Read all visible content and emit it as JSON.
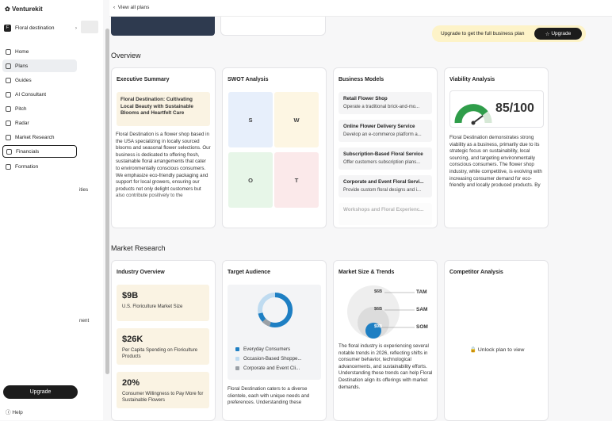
{
  "sidebar": {
    "brand": "Venturekit",
    "workspace": "Floral destination",
    "nav": [
      "Home",
      "Plans",
      "Guides",
      "AI Consultant",
      "Pitch",
      "Radar",
      "Market Research",
      "Financials",
      "Formation"
    ],
    "partial": [
      "ities",
      "nent"
    ],
    "upgrade": "Upgrade",
    "help": "Help"
  },
  "topbar": {
    "back": "View all plans",
    "banner": "Upgrade to get the full business plan",
    "banner_button": "Upgrade"
  },
  "overview": {
    "heading": "Overview",
    "executive_summary": {
      "title": "Executive Summary",
      "highlight": "Floral Destination: Cultivating Local Beauty with Sustainable Blooms and Heartfelt Care",
      "body": "Floral Destination is a flower shop based in the USA specializing in locally sourced blooms and seasonal flower selections. Our business is dedicated to offering fresh, sustainable floral arrangements that cater to environmentally conscious consumers. We emphasize eco-friendly packaging and support for local growers, ensuring our products not only delight customers but also contribute positively to the"
    },
    "swot": {
      "title": "SWOT Analysis",
      "cells": [
        "S",
        "W",
        "O",
        "T"
      ]
    },
    "business_models": {
      "title": "Business Models",
      "items": [
        {
          "name": "Retail Flower Shop",
          "desc": "Operate a traditional brick-and-mo..."
        },
        {
          "name": "Online Flower Delivery Service",
          "desc": "Develop an e-commerce platform a..."
        },
        {
          "name": "Subscription-Based Floral Service",
          "desc": "Offer customers subscription plans..."
        },
        {
          "name": "Corporate and Event Floral Servi...",
          "desc": "Provide custom floral designs and i..."
        },
        {
          "name": "Workshops and Floral Experienc...",
          "desc": ""
        }
      ]
    },
    "viability": {
      "title": "Viability Analysis",
      "score": "85/100",
      "body": "Floral Destination demonstrates strong viability as a business, primarily due to its strategic focus on sustainability, local sourcing, and targeting environmentally conscious consumers. The flower shop industry, while competitive, is evolving with increasing consumer demand for eco-friendly and locally produced products. By"
    }
  },
  "market_research": {
    "heading": "Market Research",
    "industry_overview": {
      "title": "Industry Overview",
      "stats": [
        {
          "value": "$9B",
          "label": "U.S. Floriculture Market Size"
        },
        {
          "value": "$26K",
          "label": "Per Capita Spending on Floriculture Products"
        },
        {
          "value": "20%",
          "label": "Consumer Willingness to Pay More for Sustainable Flowers"
        }
      ]
    },
    "target_audience": {
      "title": "Target Audience",
      "legend": [
        "Everyday Consumers",
        "Occasion-Based Shoppe...",
        "Corporate and Event Cli..."
      ],
      "body": "Floral Destination caters to a diverse clientele, each with unique needs and preferences. Understanding these"
    },
    "market_size": {
      "title": "Market Size & Trends",
      "circles": [
        {
          "value": "$6B",
          "label": "TAM"
        },
        {
          "value": "$6B",
          "label": "SAM"
        },
        {
          "value": "$9B",
          "label": "SOM"
        }
      ],
      "body": "The floral industry is experiencing several notable trends in 2026, reflecting shifts in consumer behavior, technological advancements, and sustainability efforts. Understanding these trends can help Floral Destination align its offerings with market demands."
    },
    "competitor": {
      "title": "Competitor Analysis",
      "locked": "Unlock plan to view"
    }
  }
}
